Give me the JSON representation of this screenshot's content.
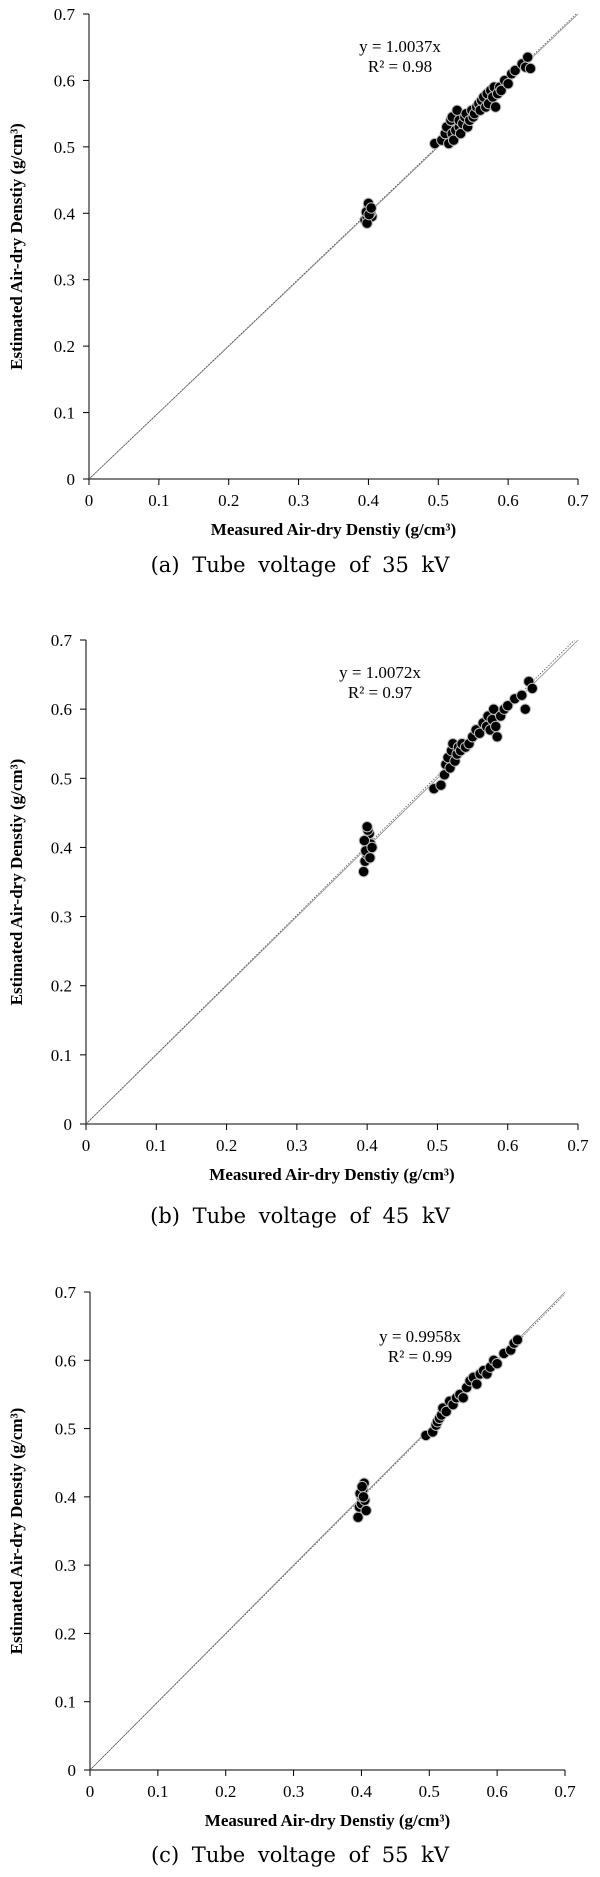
{
  "chart_data": [
    {
      "type": "scatter",
      "title": "",
      "xlabel": "Measured Air-dry Denstiy (g/cm³)",
      "ylabel": "Estimated Air-dry Denstiy (g/cm³)",
      "xlim": [
        0,
        0.7
      ],
      "ylim": [
        0,
        0.7
      ],
      "ticks": [
        "0",
        "0.1",
        "0.2",
        "0.3",
        "0.4",
        "0.5",
        "0.6",
        "0.7"
      ],
      "grid": false,
      "equation": "y = 1.0037x",
      "r_squared": "R² = 0.98",
      "caption": "(a) Tube voltage of 35 kV",
      "slope": 1.0037,
      "series": [
        {
          "x": [
            0.395,
            0.398,
            0.4,
            0.402,
            0.4,
            0.405,
            0.398,
            0.403,
            0.4,
            0.397,
            0.401,
            0.404,
            0.495,
            0.505,
            0.51,
            0.512,
            0.515,
            0.518,
            0.52,
            0.52,
            0.522,
            0.525,
            0.527,
            0.53,
            0.53,
            0.532,
            0.535,
            0.538,
            0.54,
            0.542,
            0.545,
            0.548,
            0.55,
            0.552,
            0.555,
            0.558,
            0.56,
            0.562,
            0.565,
            0.568,
            0.57,
            0.572,
            0.575,
            0.578,
            0.58,
            0.582,
            0.585,
            0.588,
            0.59,
            0.595,
            0.6,
            0.605,
            0.61,
            0.62,
            0.625,
            0.628,
            0.632
          ],
          "y": [
            0.39,
            0.395,
            0.4,
            0.405,
            0.41,
            0.395,
            0.385,
            0.4,
            0.415,
            0.402,
            0.398,
            0.408,
            0.505,
            0.51,
            0.52,
            0.53,
            0.505,
            0.54,
            0.52,
            0.545,
            0.51,
            0.525,
            0.555,
            0.53,
            0.54,
            0.52,
            0.535,
            0.545,
            0.55,
            0.53,
            0.54,
            0.555,
            0.545,
            0.55,
            0.56,
            0.565,
            0.555,
            0.57,
            0.575,
            0.56,
            0.58,
            0.565,
            0.585,
            0.575,
            0.59,
            0.56,
            0.58,
            0.59,
            0.585,
            0.6,
            0.595,
            0.61,
            0.615,
            0.625,
            0.62,
            0.635,
            0.618
          ]
        }
      ]
    },
    {
      "type": "scatter",
      "title": "",
      "xlabel": "Measured Air-dry Denstiy (g/cm³)",
      "ylabel": "Estimated Air-dry Denstiy (g/cm³)",
      "xlim": [
        0,
        0.7
      ],
      "ylim": [
        0,
        0.7
      ],
      "ticks": [
        "0",
        "0.1",
        "0.2",
        "0.3",
        "0.4",
        "0.5",
        "0.6",
        "0.7"
      ],
      "grid": false,
      "equation": "y = 1.0072x",
      "r_squared": "R² = 0.97",
      "caption": "(b) Tube voltage of 45 kV",
      "slope": 1.0072,
      "series": [
        {
          "x": [
            0.395,
            0.397,
            0.4,
            0.4,
            0.402,
            0.403,
            0.405,
            0.398,
            0.401,
            0.404,
            0.396,
            0.407,
            0.4,
            0.495,
            0.505,
            0.51,
            0.512,
            0.515,
            0.518,
            0.52,
            0.522,
            0.525,
            0.528,
            0.53,
            0.533,
            0.535,
            0.54,
            0.545,
            0.55,
            0.555,
            0.56,
            0.565,
            0.57,
            0.572,
            0.575,
            0.578,
            0.58,
            0.583,
            0.585,
            0.59,
            0.595,
            0.6,
            0.61,
            0.62,
            0.625,
            0.63,
            0.635
          ],
          "y": [
            0.365,
            0.38,
            0.39,
            0.4,
            0.41,
            0.42,
            0.405,
            0.395,
            0.425,
            0.385,
            0.41,
            0.4,
            0.43,
            0.485,
            0.49,
            0.505,
            0.52,
            0.53,
            0.515,
            0.54,
            0.55,
            0.525,
            0.535,
            0.545,
            0.54,
            0.55,
            0.545,
            0.55,
            0.56,
            0.57,
            0.565,
            0.58,
            0.575,
            0.59,
            0.57,
            0.585,
            0.6,
            0.575,
            0.56,
            0.59,
            0.6,
            0.605,
            0.615,
            0.62,
            0.6,
            0.64,
            0.63
          ]
        }
      ]
    },
    {
      "type": "scatter",
      "title": "",
      "xlabel": "Measured Air-dry Denstiy (g/cm³)",
      "ylabel": "Estimated Air-dry Denstiy (g/cm³)",
      "xlim": [
        0,
        0.7
      ],
      "ylim": [
        0,
        0.7
      ],
      "ticks": [
        "0",
        "0.1",
        "0.2",
        "0.3",
        "0.4",
        "0.5",
        "0.6",
        "0.7"
      ],
      "grid": false,
      "equation": "y = 0.9958x",
      "r_squared": "R² = 0.99",
      "caption": "(c) Tube voltage of 55 kV",
      "slope": 0.9958,
      "series": [
        {
          "x": [
            0.395,
            0.397,
            0.4,
            0.4,
            0.402,
            0.404,
            0.405,
            0.398,
            0.401,
            0.403,
            0.407,
            0.495,
            0.505,
            0.51,
            0.512,
            0.515,
            0.518,
            0.52,
            0.525,
            0.53,
            0.535,
            0.54,
            0.545,
            0.55,
            0.555,
            0.56,
            0.565,
            0.57,
            0.575,
            0.58,
            0.585,
            0.59,
            0.595,
            0.6,
            0.61,
            0.62,
            0.625,
            0.63
          ],
          "y": [
            0.37,
            0.385,
            0.39,
            0.4,
            0.41,
            0.42,
            0.395,
            0.405,
            0.415,
            0.4,
            0.38,
            0.49,
            0.495,
            0.505,
            0.51,
            0.515,
            0.52,
            0.53,
            0.525,
            0.54,
            0.535,
            0.545,
            0.55,
            0.545,
            0.56,
            0.57,
            0.575,
            0.565,
            0.58,
            0.585,
            0.58,
            0.59,
            0.6,
            0.595,
            0.61,
            0.615,
            0.625,
            0.63
          ]
        }
      ]
    }
  ]
}
